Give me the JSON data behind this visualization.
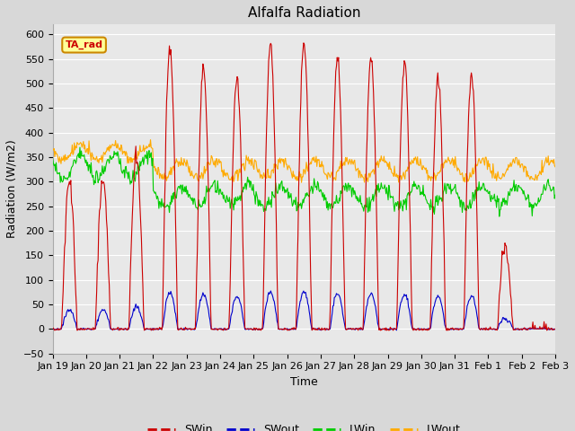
{
  "title": "Alfalfa Radiation",
  "xlabel": "Time",
  "ylabel": "Radiation (W/m2)",
  "ylim": [
    -50,
    620
  ],
  "background_color": "#d8d8d8",
  "plot_bg_color": "#e8e8e8",
  "grid_color": "#ffffff",
  "SWin_color": "#cc0000",
  "SWout_color": "#0000cc",
  "LWin_color": "#00cc00",
  "LWout_color": "#ffaa00",
  "annotation_text": "TA_rad",
  "annotation_color": "#cc0000",
  "annotation_bg": "#ffff99",
  "annotation_border": "#cc8800",
  "day_labels": [
    "Jan 19",
    "Jan 20",
    "Jan 21",
    "Jan 22",
    "Jan 23",
    "Jan 24",
    "Jan 25",
    "Jan 26",
    "Jan 27",
    "Jan 28",
    "Jan 29",
    "Jan 30",
    "Jan 31",
    "Feb 1",
    "Feb 2",
    "Feb 3"
  ],
  "title_fontsize": 11,
  "axis_fontsize": 8,
  "ylabel_fontsize": 9
}
